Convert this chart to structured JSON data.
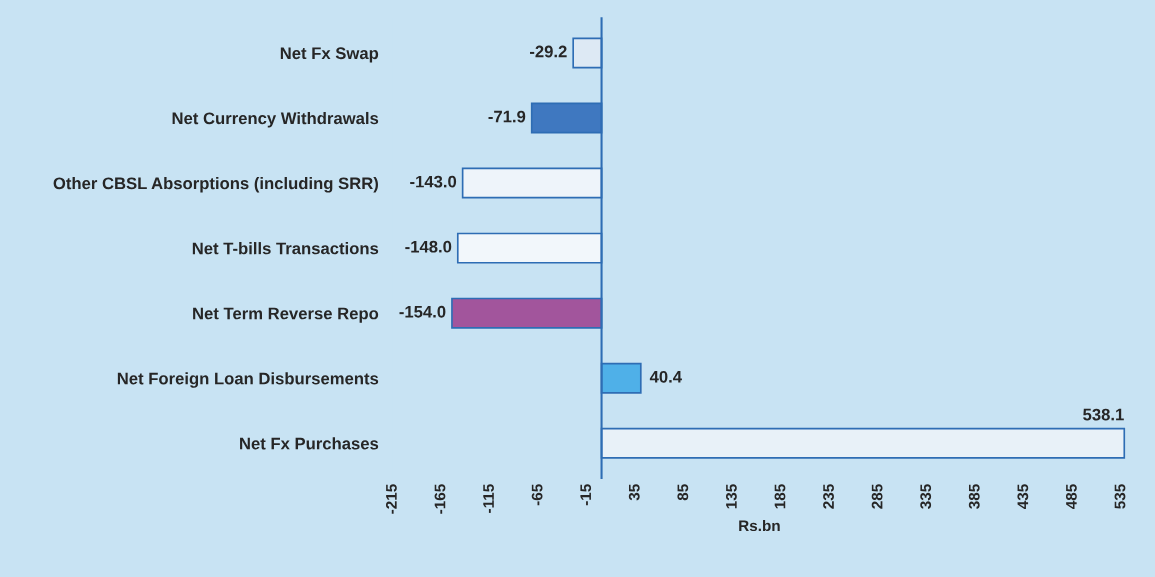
{
  "chart_data": {
    "type": "bar",
    "orientation": "horizontal",
    "xlabel": "Rs.bn",
    "categories": [
      "Net Fx Swap",
      "Net Currency Withdrawals",
      "Other CBSL Absorptions (including SRR)",
      "Net T-bills Transactions",
      "Net Term Reverse Repo",
      "Net Foreign Loan Disbursements",
      "Net Fx Purchases"
    ],
    "values": [
      -29.2,
      -71.9,
      -143.0,
      -148.0,
      -154.0,
      40.4,
      538.1
    ],
    "colors": [
      "#dde9f4",
      "#3f78c0",
      "#eef4fa",
      "#f2f7fb",
      "#a2559c",
      "#4fb0e8",
      "#e8f1f8"
    ],
    "xlim": [
      -215,
      540
    ],
    "xticks": [
      -215,
      -165,
      -115,
      -65,
      -15,
      35,
      85,
      135,
      185,
      235,
      285,
      335,
      385,
      435,
      485,
      535
    ],
    "value_labels": [
      "-29.2",
      "-71.9",
      "-143.0",
      "-148.0",
      "-154.0",
      "40.4",
      "538.1"
    ],
    "ref_lines": [
      {
        "axis": "x",
        "value": 0,
        "color": "#2e6db4"
      }
    ],
    "grid": false,
    "legend": false
  }
}
